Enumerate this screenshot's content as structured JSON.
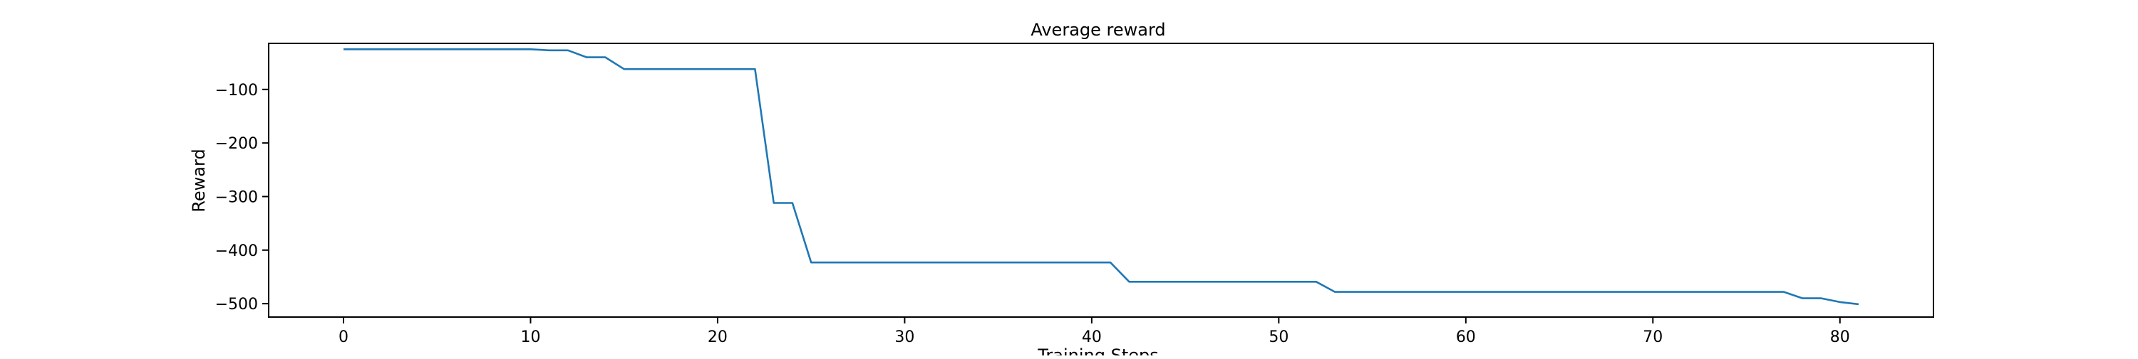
{
  "chart_data": {
    "type": "line",
    "title": "Average reward",
    "xlabel": "Training Steps",
    "ylabel": "Reward",
    "xlim": [
      -4,
      85
    ],
    "ylim": [
      -525,
      -14
    ],
    "x_ticks": [
      0,
      10,
      20,
      30,
      40,
      50,
      60,
      70,
      80
    ],
    "y_ticks": [
      -100,
      -200,
      -300,
      -400,
      -500
    ],
    "grid": false,
    "legend": "none",
    "line_color": "#1f77b4",
    "series": [
      {
        "x": [
          0,
          1,
          2,
          3,
          4,
          5,
          6,
          7,
          8,
          9,
          10,
          11,
          12,
          13,
          14,
          15,
          16,
          17,
          18,
          19,
          20,
          21,
          22,
          23,
          24,
          25,
          26,
          27,
          28,
          29,
          30,
          31,
          32,
          33,
          34,
          35,
          36,
          37,
          38,
          39,
          40,
          41,
          42,
          43,
          44,
          45,
          46,
          47,
          48,
          49,
          50,
          51,
          52,
          53,
          54,
          55,
          56,
          57,
          58,
          59,
          60,
          61,
          62,
          63,
          64,
          65,
          66,
          67,
          68,
          69,
          70,
          71,
          72,
          73,
          74,
          75,
          76,
          77,
          78,
          79,
          80,
          81
        ],
        "y": [
          -25,
          -25,
          -25,
          -25,
          -25,
          -25,
          -25,
          -25,
          -25,
          -25,
          -25,
          -27,
          -27,
          -40,
          -40,
          -62,
          -62,
          -62,
          -62,
          -62,
          -62,
          -62,
          -62,
          -312,
          -312,
          -423,
          -423,
          -423,
          -423,
          -423,
          -423,
          -423,
          -423,
          -423,
          -423,
          -423,
          -423,
          -423,
          -423,
          -423,
          -423,
          -423,
          -459,
          -459,
          -459,
          -459,
          -459,
          -459,
          -459,
          -459,
          -459,
          -459,
          -459,
          -478,
          -478,
          -478,
          -478,
          -478,
          -478,
          -478,
          -478,
          -478,
          -478,
          -478,
          -478,
          -478,
          -478,
          -478,
          -478,
          -478,
          -478,
          -478,
          -478,
          -478,
          -478,
          -478,
          -478,
          -478,
          -490,
          -490,
          -497,
          -501
        ]
      }
    ]
  }
}
